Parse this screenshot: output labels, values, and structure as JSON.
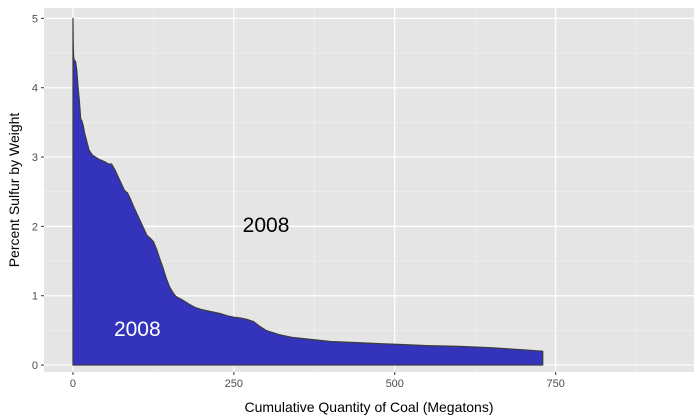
{
  "chart_data": {
    "type": "area",
    "title": "",
    "xlabel": "Cumulative Quantity of Coal (Megatons)",
    "ylabel": "Percent Sulfur by Weight",
    "xlim": [
      -45,
      965
    ],
    "ylim": [
      -0.1,
      5.15
    ],
    "x_ticks": [
      0,
      250,
      500,
      750
    ],
    "y_ticks": [
      0,
      1,
      2,
      3,
      4,
      5
    ],
    "grid": true,
    "legend": "none",
    "fill_color": "#3333bb",
    "line_color": "#3c3c3c",
    "panel_color": "#e5e5e5",
    "series": [
      {
        "x": [
          0,
          0.5,
          1,
          2,
          4,
          6,
          8,
          10,
          12,
          14,
          16,
          18,
          20,
          25,
          30,
          35,
          40,
          45,
          50,
          55,
          60,
          65,
          70,
          75,
          80,
          85,
          90,
          95,
          100,
          105,
          110,
          115,
          120,
          125,
          130,
          135,
          140,
          145,
          150,
          155,
          160,
          170,
          180,
          190,
          200,
          210,
          220,
          230,
          240,
          250,
          260,
          270,
          280,
          290,
          300,
          320,
          340,
          360,
          380,
          400,
          450,
          500,
          550,
          600,
          650,
          700,
          730
        ],
        "y": [
          5.0,
          4.6,
          4.45,
          4.4,
          4.38,
          4.25,
          4.0,
          3.8,
          3.55,
          3.52,
          3.45,
          3.35,
          3.28,
          3.1,
          3.03,
          3.0,
          2.97,
          2.95,
          2.93,
          2.9,
          2.9,
          2.82,
          2.72,
          2.62,
          2.52,
          2.48,
          2.38,
          2.27,
          2.17,
          2.07,
          1.97,
          1.87,
          1.83,
          1.78,
          1.67,
          1.53,
          1.4,
          1.25,
          1.13,
          1.05,
          0.99,
          0.94,
          0.88,
          0.83,
          0.8,
          0.78,
          0.76,
          0.74,
          0.71,
          0.69,
          0.68,
          0.66,
          0.63,
          0.56,
          0.5,
          0.44,
          0.4,
          0.38,
          0.36,
          0.34,
          0.32,
          0.3,
          0.28,
          0.27,
          0.25,
          0.22,
          0.2
        ]
      }
    ],
    "annotations": [
      {
        "text": "2008",
        "x": 300,
        "y": 2.0,
        "color": "#000000"
      },
      {
        "text": "2008",
        "x": 100,
        "y": 0.5,
        "color": "#ffffff"
      }
    ]
  }
}
